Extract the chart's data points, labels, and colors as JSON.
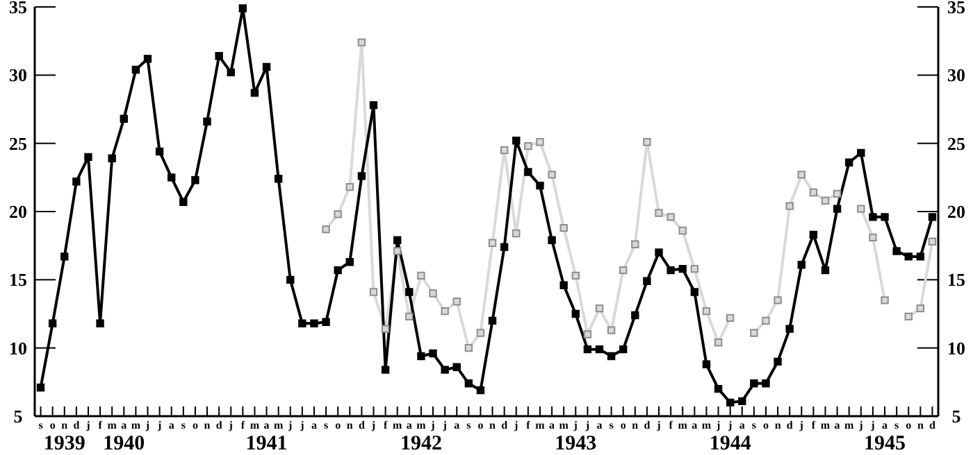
{
  "chart_data": {
    "type": "line",
    "categories": [
      "s",
      "o",
      "n\n1939",
      "d",
      "j",
      "f",
      "m",
      "a\n1940",
      "m",
      "j",
      "j",
      "a",
      "s",
      "o",
      "n",
      "d",
      "j",
      "f",
      "m",
      "a\n1941",
      "m",
      "j",
      "j",
      "a",
      "s",
      "o",
      "n",
      "d",
      "j",
      "f",
      "m",
      "a",
      "m\n1942",
      "j",
      "j",
      "a",
      "s",
      "o",
      "n",
      "d",
      "j",
      "f",
      "m",
      "a",
      "m",
      "j\n1943",
      "j",
      "a",
      "s",
      "o",
      "n",
      "d",
      "j",
      "f",
      "m",
      "a",
      "m",
      "j",
      "j\n1944",
      "a",
      "s",
      "o",
      "n",
      "d",
      "j",
      "f",
      "m",
      "a",
      "m",
      "j",
      "j",
      "a\n1945",
      "s",
      "o",
      "n",
      "d"
    ],
    "series": [
      {
        "color": "#d9d9d9",
        "values": [
          null,
          null,
          null,
          null,
          null,
          null,
          null,
          null,
          null,
          null,
          null,
          null,
          null,
          null,
          null,
          null,
          null,
          null,
          null,
          null,
          null,
          null,
          null,
          null,
          18.7,
          19.8,
          21.8,
          32.4,
          14.1,
          11.4,
          17.1,
          12.3,
          15.3,
          14.0,
          12.7,
          13.4,
          10.0,
          11.1,
          17.7,
          24.5,
          18.4,
          24.8,
          25.1,
          22.7,
          18.8,
          15.3,
          11.0,
          12.9,
          11.3,
          15.7,
          17.6,
          25.1,
          19.9,
          19.6,
          18.6,
          15.8,
          12.7,
          10.4,
          12.2,
          null,
          11.1,
          12.0,
          13.5,
          20.4,
          22.7,
          21.4,
          20.8,
          21.3,
          null,
          20.2,
          18.1,
          13.5,
          null,
          12.3,
          12.9,
          17.8
        ]
      },
      {
        "color": "#000000",
        "values": [
          7.1,
          11.8,
          16.7,
          22.2,
          24.0,
          11.8,
          23.9,
          26.8,
          30.4,
          31.2,
          24.4,
          22.5,
          20.7,
          22.3,
          26.6,
          31.4,
          30.2,
          34.9,
          28.7,
          30.6,
          22.4,
          15.0,
          11.8,
          11.8,
          11.9,
          15.7,
          16.3,
          22.6,
          27.8,
          8.4,
          17.9,
          14.1,
          9.4,
          9.6,
          8.4,
          8.6,
          7.4,
          6.9,
          12.0,
          17.4,
          25.2,
          22.9,
          21.9,
          17.9,
          14.6,
          12.5,
          9.9,
          9.9,
          9.4,
          9.9,
          12.4,
          14.9,
          17.0,
          15.7,
          15.8,
          14.1,
          8.8,
          7.0,
          6.0,
          6.1,
          7.4,
          7.4,
          9.0,
          11.4,
          16.1,
          18.3,
          15.7,
          20.2,
          23.6,
          24.3,
          19.6,
          19.6,
          17.1,
          16.7,
          16.7,
          19.6
        ]
      }
    ],
    "ylim": [
      5,
      35
    ],
    "yticks": [
      5,
      10,
      15,
      20,
      25,
      30,
      35
    ],
    "y2lim": [
      5,
      35
    ],
    "y2ticks": [
      5,
      10,
      15,
      20,
      25,
      30,
      35
    ],
    "marker": "square",
    "line_style": "solid",
    "grid": false
  }
}
